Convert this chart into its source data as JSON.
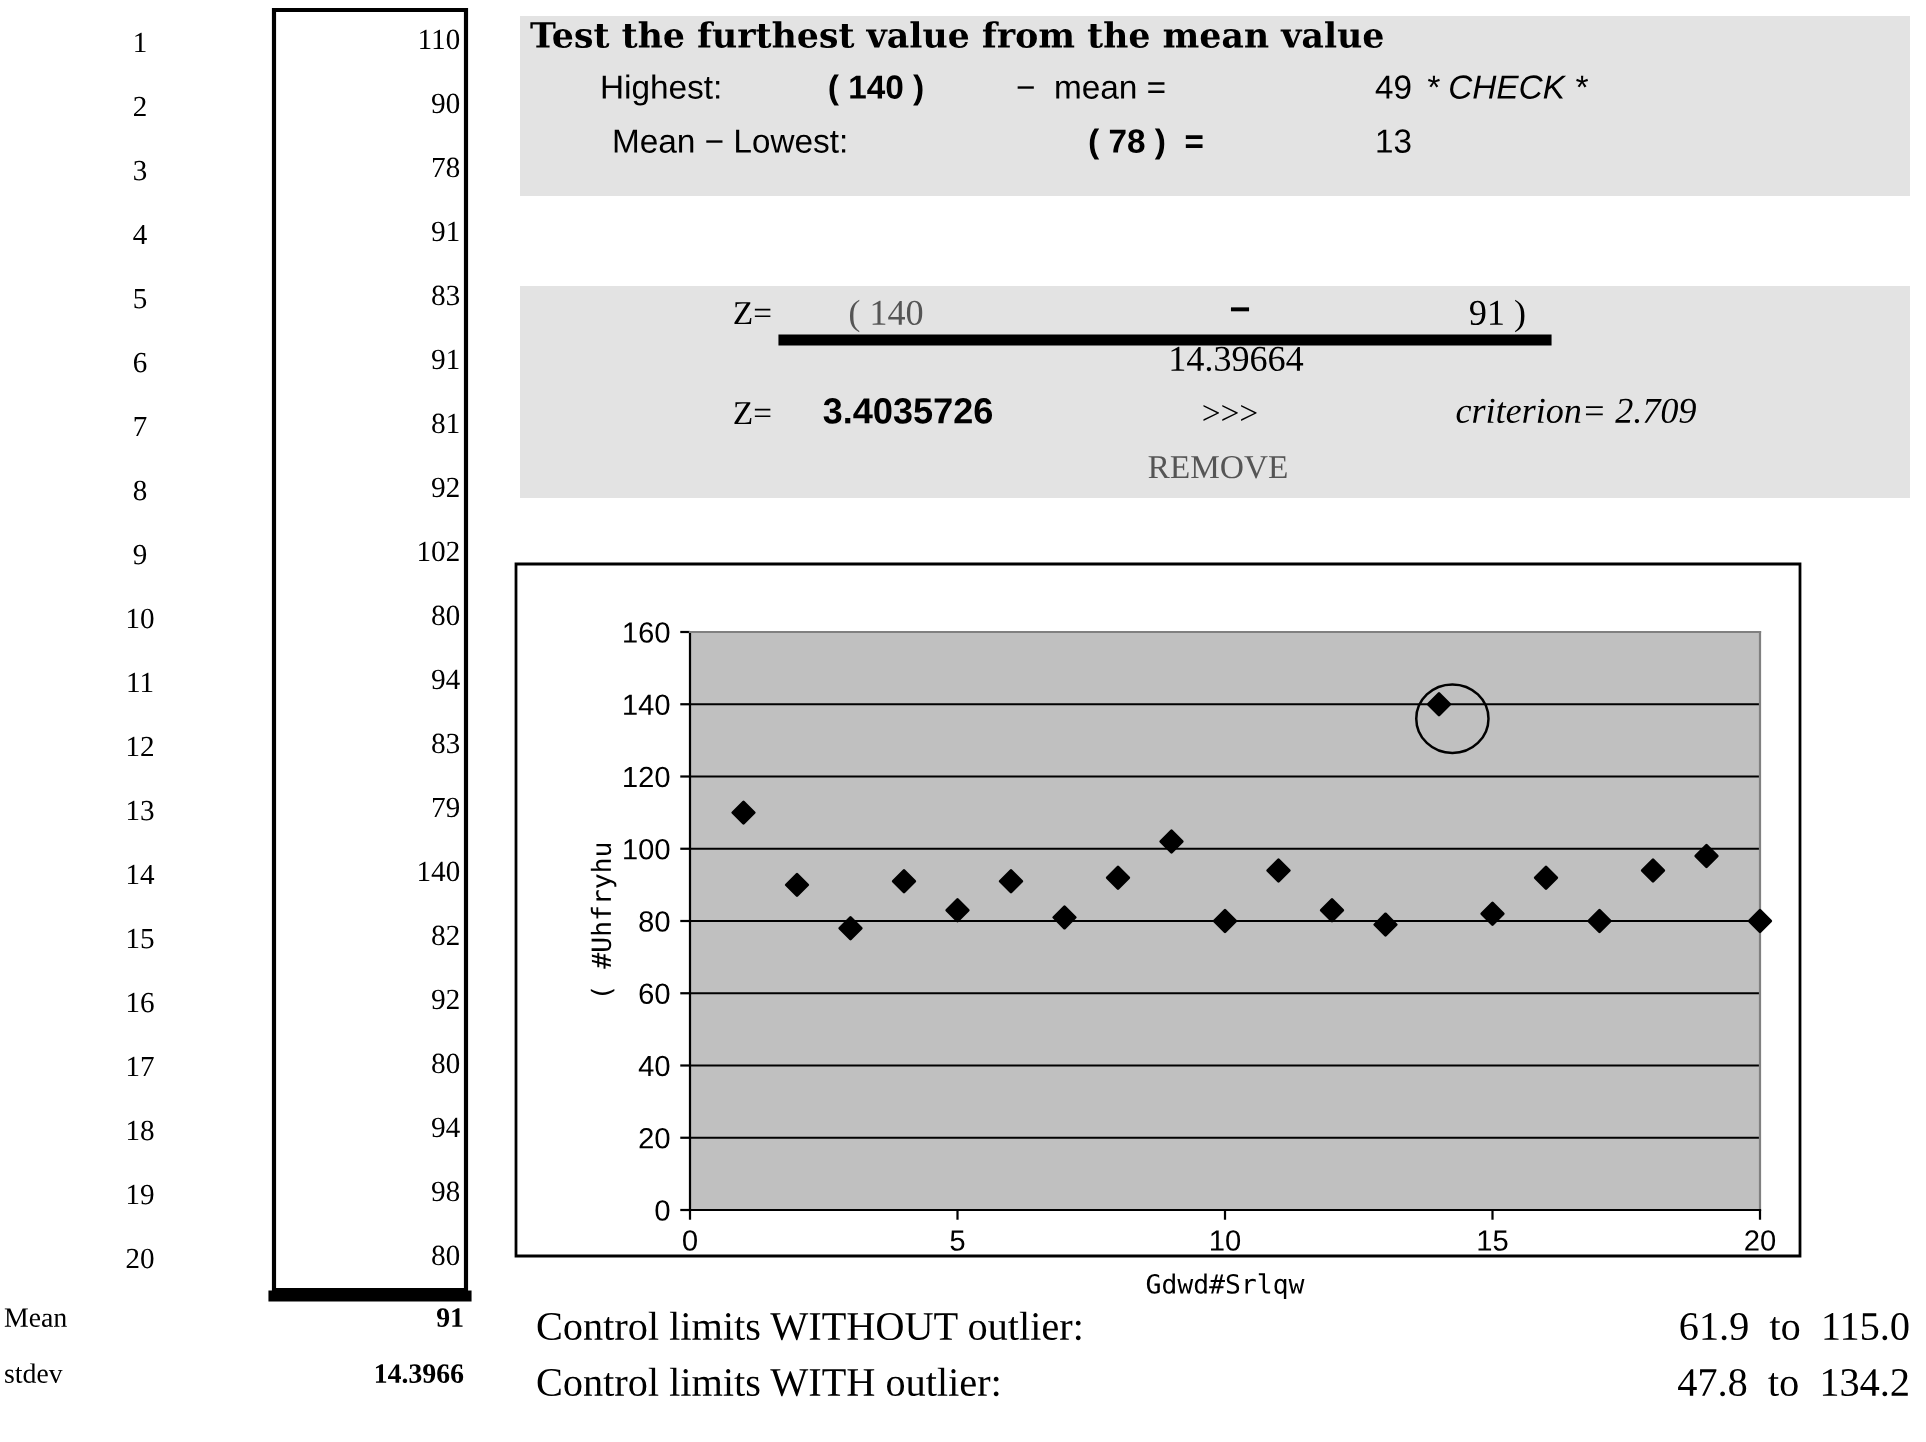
{
  "chart_data": [
    {
      "type": "heatmap",
      "categories": [
        null
      ],
      "y_categories": [
        "1",
        "2",
        "3",
        "4",
        "5",
        "6",
        "7",
        "8",
        "9",
        "10",
        "11",
        "12",
        "13",
        "14",
        "15",
        "16",
        "17",
        "18",
        "19",
        "20"
      ],
      "cells": [
        [
          110
        ],
        [
          90
        ],
        [
          78
        ],
        [
          91
        ],
        [
          83
        ],
        [
          91
        ],
        [
          81
        ],
        [
          92
        ],
        [
          102
        ],
        [
          80
        ],
        [
          94
        ],
        [
          83
        ],
        [
          79
        ],
        [
          140
        ],
        [
          82
        ],
        [
          92
        ],
        [
          80
        ],
        [
          94
        ],
        [
          98
        ],
        [
          80
        ]
      ],
      "data_labels": true,
      "annotations": [
        "Mean",
        "91",
        "stdev",
        "14.3966"
      ]
    },
    {
      "type": "scatter",
      "title": "Test the furthest value from the mean value",
      "xlabel": "Gdwd#Srlqw",
      "ylabel": "( #Uhfryhu",
      "x": [
        1,
        2,
        3,
        4,
        5,
        6,
        7,
        8,
        9,
        10,
        11,
        12,
        13,
        14,
        15,
        16,
        17,
        18,
        19,
        20
      ],
      "values": [
        110,
        90,
        78,
        91,
        83,
        91,
        81,
        92,
        102,
        80,
        94,
        83,
        79,
        140,
        82,
        92,
        80,
        94,
        98,
        80
      ],
      "color": "#000000",
      "marker": "diamond",
      "xlim": [
        0,
        20
      ],
      "xticks": [
        0,
        5,
        10,
        15,
        20
      ],
      "ylim": [
        0,
        160
      ],
      "yticks": [
        0,
        20,
        40,
        60,
        80,
        100,
        120,
        140,
        160
      ],
      "grid": "y",
      "annotations": [
        "Highest:",
        "( 140 )",
        "−  mean =",
        "49",
        "* CHECK *",
        "Mean − Lowest:",
        "( 78 )  =",
        "13",
        "Z=",
        "( 140",
        "−",
        "91 )",
        "14.39664",
        "Z=",
        "3.4035726",
        ">>>",
        "criterion= 2.709",
        "REMOVE",
        "Control limits WITHOUT outlier:",
        "61.9  to  115.0",
        "Control limits WITH outlier:",
        "47.8  to  134.2"
      ]
    }
  ]
}
